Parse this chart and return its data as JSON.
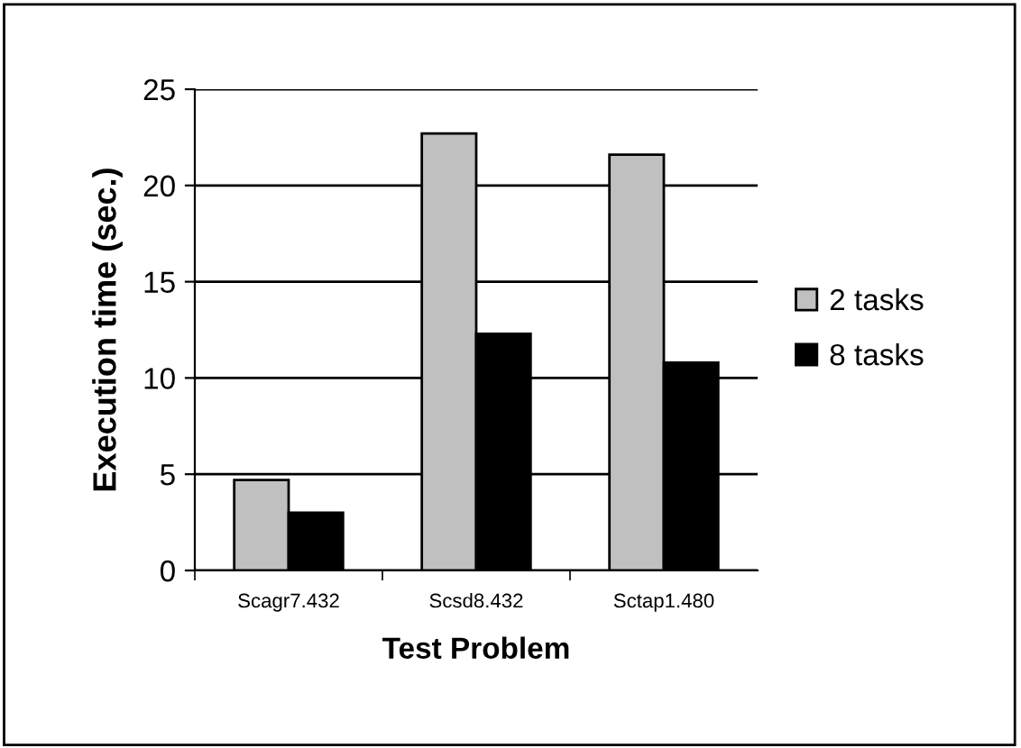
{
  "chart_data": {
    "type": "bar",
    "xlabel": "Test Problem",
    "ylabel": "Execution time (sec.)",
    "categories": [
      "Scagr7.432",
      "Scsd8.432",
      "Sctap1.480"
    ],
    "series": [
      {
        "name": "2 tasks",
        "color": "#c0c0c0",
        "values": [
          4.7,
          22.7,
          21.6
        ]
      },
      {
        "name": "8 tasks",
        "color": "#000000",
        "values": [
          3.0,
          12.3,
          10.8
        ]
      }
    ],
    "ylim": [
      0,
      25
    ],
    "yticks": [
      0,
      5,
      10,
      15,
      20,
      25
    ],
    "grid": "y",
    "legend": "right"
  }
}
